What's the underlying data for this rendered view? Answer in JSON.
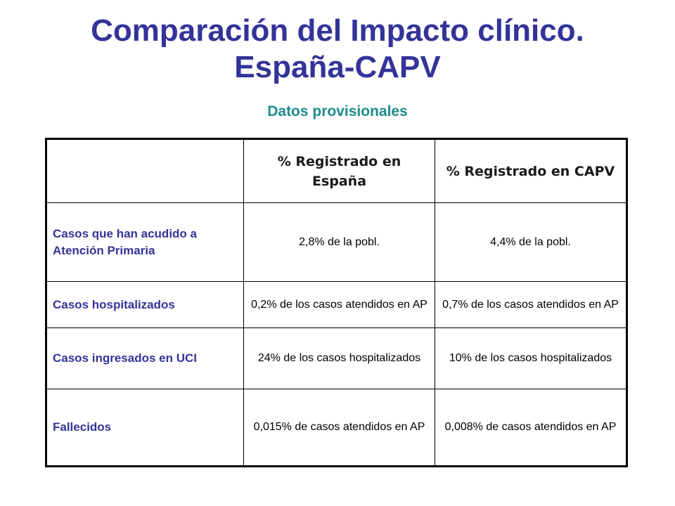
{
  "title_line1": "Comparación del Impacto clínico.",
  "title_line2": "España-CAPV",
  "subtitle": "Datos provisionales",
  "table": {
    "header_empty": "",
    "col_spain": "% Registrado en España",
    "col_capv": "% Registrado en CAPV",
    "rows": [
      {
        "label": "Casos que han acudido a Atención Primaria",
        "spain": "2,8% de la pobl.",
        "capv": "4,4% de la pobl."
      },
      {
        "label": "Casos hospitalizados",
        "spain": "0,2% de los casos atendidos en AP",
        "capv": "0,7% de los casos atendidos en AP"
      },
      {
        "label": "Casos ingresados en UCI",
        "spain": "24% de los casos hospitalizados",
        "capv": "10% de los casos hospitalizados"
      },
      {
        "label": "Fallecidos",
        "spain": "0,015% de casos atendidos en AP",
        "capv": "0,008% de casos atendidos en AP"
      }
    ]
  },
  "colors": {
    "title": "#333399",
    "subtitle": "#1f8c8c",
    "row_label": "#333399"
  }
}
